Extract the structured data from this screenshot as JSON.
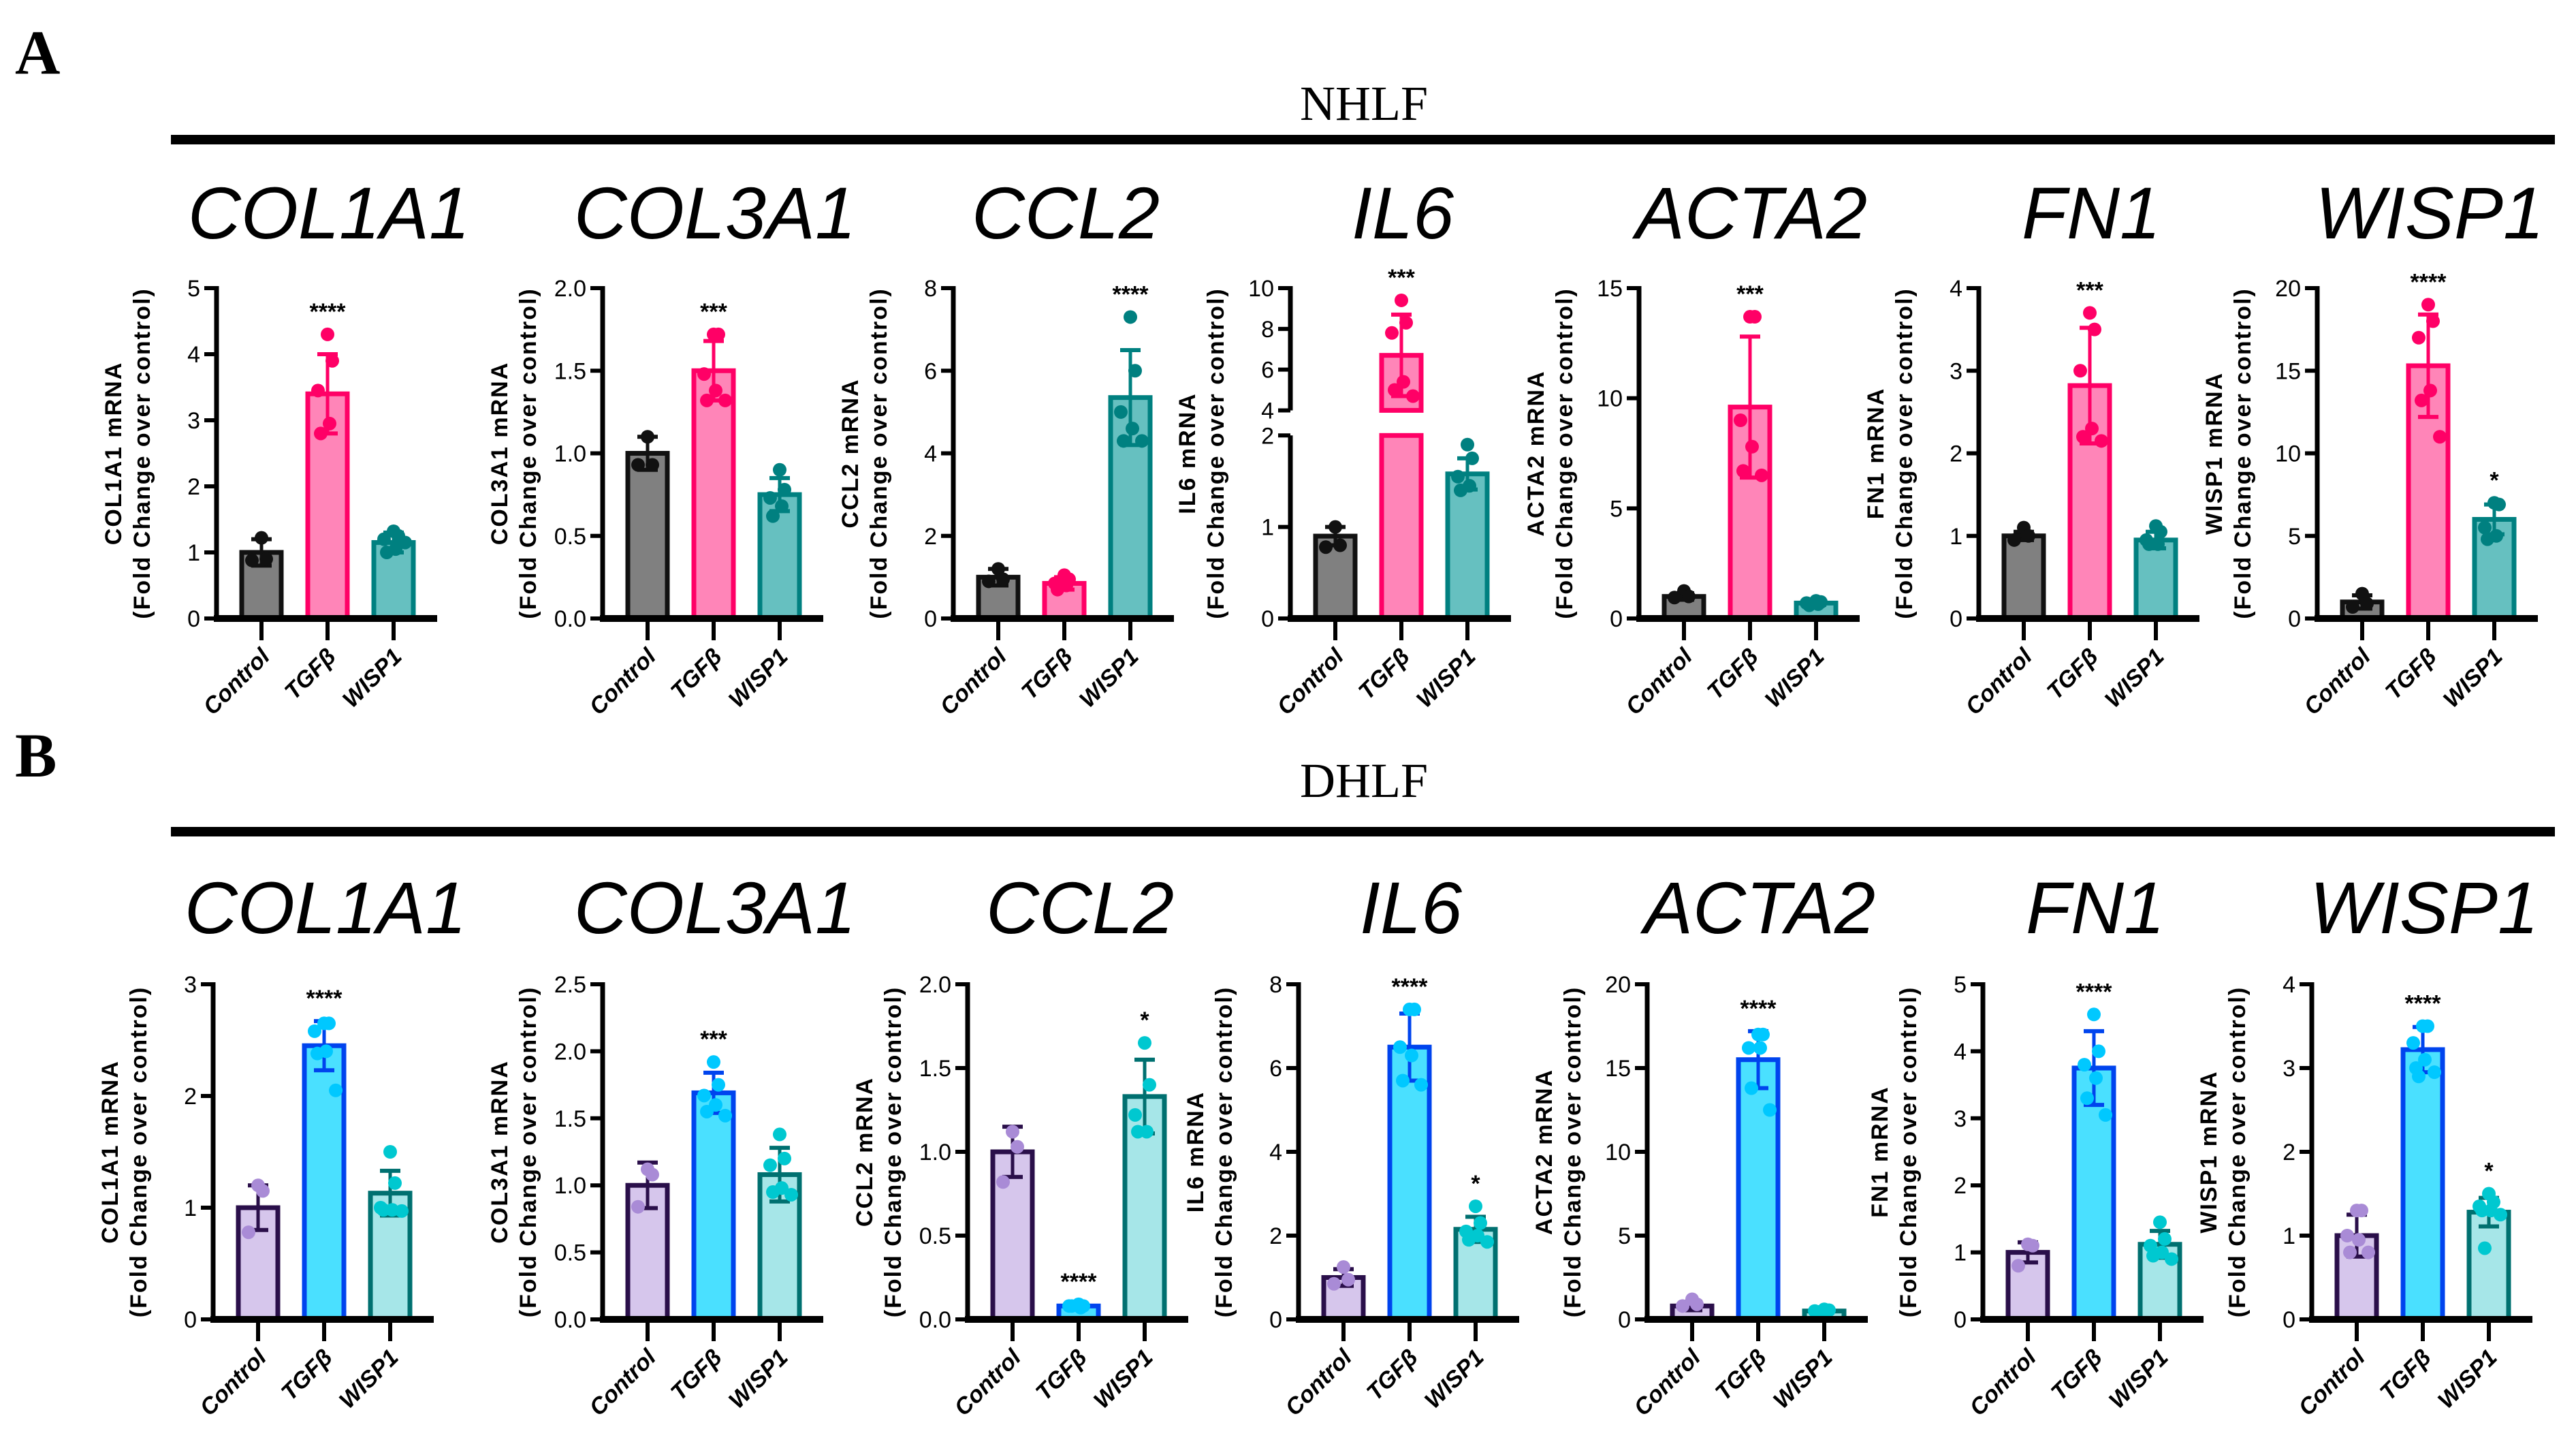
{
  "panels": [
    {
      "letter": "A",
      "cell_line": "NHLF"
    },
    {
      "letter": "B",
      "cell_line": "DHLF"
    }
  ],
  "colors": {
    "A": {
      "fill": [
        "#808080",
        "#ff85b8",
        "#66c0c0"
      ],
      "stroke": [
        "#111111",
        "#ff0066",
        "#008080"
      ],
      "dot": [
        "#111111",
        "#ff0066",
        "#008080"
      ]
    },
    "B": {
      "fill": [
        "#d6c6ec",
        "#4ae0ff",
        "#a6e6e8"
      ],
      "stroke": [
        "#2a0f4a",
        "#0044ee",
        "#007070"
      ],
      "dot": [
        "#a98bd6",
        "#00c8ff",
        "#00c8d0"
      ]
    }
  },
  "chart_data": [
    {
      "type": "bar",
      "panel": "A",
      "title": "COL1A1",
      "ylabel": "COL1A1 mRNA",
      "ylabel2": "(Fold Change over control)",
      "ylim": [
        0,
        5
      ],
      "yticks": [
        "0",
        "1",
        "2",
        "3",
        "4",
        "5"
      ],
      "categories": [
        "Control",
        "TGFβ",
        "WISP1"
      ],
      "series": [
        {
          "name": "Control",
          "mean": 1.0,
          "sd": 0.2,
          "points": [
            1.22,
            0.9,
            0.88
          ],
          "sig": ""
        },
        {
          "name": "TGFβ",
          "mean": 3.4,
          "sd": 0.6,
          "points": [
            4.3,
            3.9,
            3.45,
            2.95,
            2.8
          ],
          "sig": "****"
        },
        {
          "name": "WISP1",
          "mean": 1.15,
          "sd": 0.15,
          "points": [
            1.32,
            1.25,
            1.2,
            1.05,
            1.0,
            1.15
          ],
          "sig": ""
        }
      ]
    },
    {
      "type": "bar",
      "panel": "A",
      "title": "COL3A1",
      "ylabel": "COL3A1 mRNA",
      "ylabel2": "(Fold Change over control)",
      "ylim": [
        0,
        2
      ],
      "yticks": [
        "0.0",
        "0.5",
        "1.0",
        "1.5",
        "2.0"
      ],
      "categories": [
        "Control",
        "TGFβ",
        "WISP1"
      ],
      "series": [
        {
          "name": "Control",
          "mean": 1.0,
          "sd": 0.1,
          "points": [
            1.1,
            0.93,
            0.93
          ],
          "sig": ""
        },
        {
          "name": "TGFβ",
          "mean": 1.5,
          "sd": 0.18,
          "points": [
            1.72,
            1.72,
            1.48,
            1.38,
            1.32,
            1.32
          ],
          "sig": "***"
        },
        {
          "name": "WISP1",
          "mean": 0.75,
          "sd": 0.1,
          "points": [
            0.9,
            0.78,
            0.73,
            0.68,
            0.62
          ],
          "sig": ""
        }
      ]
    },
    {
      "type": "bar",
      "panel": "A",
      "title": "CCL2",
      "ylabel": "CCL2 mRNA",
      "ylabel2": "(Fold Change over control)",
      "ylim": [
        0,
        8
      ],
      "yticks": [
        "0",
        "2",
        "4",
        "6",
        "8"
      ],
      "categories": [
        "Control",
        "TGFβ",
        "WISP1"
      ],
      "series": [
        {
          "name": "Control",
          "mean": 1.0,
          "sd": 0.2,
          "points": [
            1.2,
            0.95,
            0.9
          ],
          "sig": ""
        },
        {
          "name": "TGFβ",
          "mean": 0.85,
          "sd": 0.15,
          "points": [
            1.05,
            0.95,
            0.85,
            0.8,
            0.7
          ],
          "sig": ""
        },
        {
          "name": "WISP1",
          "mean": 5.35,
          "sd": 1.15,
          "points": [
            7.3,
            6.0,
            5.0,
            4.6,
            4.3,
            4.3
          ],
          "sig": "****"
        }
      ]
    },
    {
      "type": "bar",
      "panel": "A",
      "title": "IL6",
      "ylabel": "IL6 mRNA",
      "ylabel2": "(Fold Change over control)",
      "ylim": [
        0,
        10
      ],
      "y_breaks": [
        [
          0,
          2
        ],
        [
          4,
          10
        ]
      ],
      "yticks": [
        "0",
        "1",
        "2",
        "4",
        "6",
        "8",
        "10"
      ],
      "categories": [
        "Control",
        "TGFβ",
        "WISP1"
      ],
      "series": [
        {
          "name": "Control",
          "mean": 0.9,
          "sd": 0.1,
          "points": [
            1.0,
            0.8,
            0.78
          ],
          "sig": ""
        },
        {
          "name": "TGFβ",
          "mean": 6.7,
          "sd": 2.0,
          "points": [
            9.4,
            8.3,
            7.8,
            5.4,
            5.0,
            4.7
          ],
          "sig": "***"
        },
        {
          "name": "WISP1",
          "mean": 1.58,
          "sd": 0.17,
          "points": [
            1.9,
            1.75,
            1.55,
            1.45,
            1.4
          ],
          "sig": ""
        }
      ]
    },
    {
      "type": "bar",
      "panel": "A",
      "title": "ACTA2",
      "ylabel": "ACTA2 mRNA",
      "ylabel2": "(Fold Change over control)",
      "ylim": [
        0,
        15
      ],
      "yticks": [
        "0",
        "5",
        "10",
        "15"
      ],
      "categories": [
        "Control",
        "TGFβ",
        "WISP1"
      ],
      "series": [
        {
          "name": "Control",
          "mean": 1.0,
          "sd": 0.15,
          "points": [
            1.25,
            1.0,
            0.95
          ],
          "sig": ""
        },
        {
          "name": "TGFβ",
          "mean": 9.6,
          "sd": 3.2,
          "points": [
            13.7,
            13.7,
            9.0,
            7.8,
            6.7,
            6.5
          ],
          "sig": "***"
        },
        {
          "name": "WISP1",
          "mean": 0.7,
          "sd": 0.08,
          "points": [
            0.8,
            0.75,
            0.7,
            0.65,
            0.6
          ],
          "sig": ""
        }
      ]
    },
    {
      "type": "bar",
      "panel": "A",
      "title": "FN1",
      "ylabel": "FN1 mRNA",
      "ylabel2": "(Fold Change over control)",
      "ylim": [
        0,
        4
      ],
      "yticks": [
        "0",
        "1",
        "2",
        "3",
        "4"
      ],
      "categories": [
        "Control",
        "TGFβ",
        "WISP1"
      ],
      "series": [
        {
          "name": "Control",
          "mean": 1.0,
          "sd": 0.05,
          "points": [
            1.1,
            1.0,
            0.95
          ],
          "sig": ""
        },
        {
          "name": "TGFβ",
          "mean": 2.82,
          "sd": 0.7,
          "points": [
            3.7,
            3.5,
            3.0,
            2.3,
            2.2,
            2.15
          ],
          "sig": "***"
        },
        {
          "name": "WISP1",
          "mean": 0.95,
          "sd": 0.1,
          "points": [
            1.12,
            1.05,
            0.95,
            0.9,
            0.9
          ],
          "sig": ""
        }
      ]
    },
    {
      "type": "bar",
      "panel": "A",
      "title": "WISP1",
      "ylabel": "WISP1 mRNA",
      "ylabel2": "(Fold Change over control)",
      "ylim": [
        0,
        20
      ],
      "yticks": [
        "0",
        "5",
        "10",
        "15",
        "20"
      ],
      "categories": [
        "Control",
        "TGFβ",
        "WISP1"
      ],
      "series": [
        {
          "name": "Control",
          "mean": 1.0,
          "sd": 0.4,
          "points": [
            1.5,
            0.9,
            0.7
          ],
          "sig": ""
        },
        {
          "name": "TGFβ",
          "mean": 15.3,
          "sd": 3.1,
          "points": [
            19,
            18,
            17,
            13.8,
            13.2,
            11
          ],
          "sig": "****"
        },
        {
          "name": "WISP1",
          "mean": 6.0,
          "sd": 0.9,
          "points": [
            7.0,
            6.9,
            5.5,
            5.0,
            4.8
          ],
          "sig": "*"
        }
      ]
    },
    {
      "type": "bar",
      "panel": "B",
      "title": "COL1A1",
      "ylabel": "COL1A1 mRNA",
      "ylabel2": "(Fold Change over control)",
      "ylim": [
        0,
        3
      ],
      "yticks": [
        "0",
        "1",
        "2",
        "3"
      ],
      "categories": [
        "Control",
        "TGFβ",
        "WISP1"
      ],
      "series": [
        {
          "name": "Control",
          "mean": 1.0,
          "sd": 0.2,
          "points": [
            1.2,
            1.15,
            0.78
          ],
          "sig": ""
        },
        {
          "name": "TGFβ",
          "mean": 2.45,
          "sd": 0.22,
          "points": [
            2.65,
            2.65,
            2.58,
            2.4,
            2.38,
            2.05
          ],
          "sig": "****"
        },
        {
          "name": "WISP1",
          "mean": 1.13,
          "sd": 0.2,
          "points": [
            1.5,
            1.22,
            1.0,
            0.98,
            0.98,
            0.97
          ],
          "sig": ""
        }
      ]
    },
    {
      "type": "bar",
      "panel": "B",
      "title": "COL3A1",
      "ylabel": "COL3A1 mRNA",
      "ylabel2": "(Fold Change over control)",
      "ylim": [
        0,
        2.5
      ],
      "yticks": [
        "0.0",
        "0.5",
        "1.0",
        "1.5",
        "2.0",
        "2.5"
      ],
      "categories": [
        "Control",
        "TGFβ",
        "WISP1"
      ],
      "series": [
        {
          "name": "Control",
          "mean": 1.0,
          "sd": 0.17,
          "points": [
            1.12,
            1.08,
            0.84
          ],
          "sig": ""
        },
        {
          "name": "TGFβ",
          "mean": 1.69,
          "sd": 0.15,
          "points": [
            1.92,
            1.75,
            1.67,
            1.6,
            1.55,
            1.52
          ],
          "sig": "***"
        },
        {
          "name": "WISP1",
          "mean": 1.08,
          "sd": 0.2,
          "points": [
            1.38,
            1.2,
            1.15,
            0.98,
            0.95,
            0.93
          ],
          "sig": ""
        }
      ]
    },
    {
      "type": "bar",
      "panel": "B",
      "title": "CCL2",
      "ylabel": "CCL2 mRNA",
      "ylabel2": "(Fold Change over control)",
      "ylim": [
        0,
        2
      ],
      "yticks": [
        "0.0",
        "0.5",
        "1.0",
        "1.5",
        "2.0"
      ],
      "categories": [
        "Control",
        "TGFβ",
        "WISP1"
      ],
      "series": [
        {
          "name": "Control",
          "mean": 1.0,
          "sd": 0.15,
          "points": [
            1.12,
            1.03,
            0.82
          ],
          "sig": ""
        },
        {
          "name": "TGFβ",
          "mean": 0.08,
          "sd": 0.01,
          "points": [
            0.09,
            0.08,
            0.08,
            0.07,
            0.08
          ],
          "sig": "****"
        },
        {
          "name": "WISP1",
          "mean": 1.33,
          "sd": 0.22,
          "points": [
            1.65,
            1.4,
            1.22,
            1.12,
            1.12
          ],
          "sig": "*"
        }
      ]
    },
    {
      "type": "bar",
      "panel": "B",
      "title": "IL6",
      "ylabel": "IL6 mRNA",
      "ylabel2": "(Fold Change over control)",
      "ylim": [
        0,
        8
      ],
      "yticks": [
        "0",
        "2",
        "4",
        "6",
        "8"
      ],
      "categories": [
        "Control",
        "TGFβ",
        "WISP1"
      ],
      "series": [
        {
          "name": "Control",
          "mean": 1.0,
          "sd": 0.2,
          "points": [
            1.25,
            0.95,
            0.85
          ],
          "sig": ""
        },
        {
          "name": "TGFβ",
          "mean": 6.5,
          "sd": 0.8,
          "points": [
            7.4,
            7.4,
            6.5,
            6.3,
            5.7,
            5.6
          ],
          "sig": "****"
        },
        {
          "name": "WISP1",
          "mean": 2.15,
          "sd": 0.3,
          "points": [
            2.7,
            2.3,
            2.1,
            2.0,
            1.9,
            1.85
          ],
          "sig": "*"
        }
      ]
    },
    {
      "type": "bar",
      "panel": "B",
      "title": "ACTA2",
      "ylabel": "ACTA2 mRNA",
      "ylabel2": "(Fold Change over control)",
      "ylim": [
        0,
        20
      ],
      "yticks": [
        "0",
        "5",
        "10",
        "15",
        "20"
      ],
      "categories": [
        "Control",
        "TGFβ",
        "WISP1"
      ],
      "series": [
        {
          "name": "Control",
          "mean": 0.8,
          "sd": 0.25,
          "points": [
            1.2,
            0.9,
            0.8
          ],
          "sig": ""
        },
        {
          "name": "TGFβ",
          "mean": 15.5,
          "sd": 1.7,
          "points": [
            17,
            17,
            16.2,
            16.2,
            13.8,
            12.5
          ],
          "sig": "****"
        },
        {
          "name": "WISP1",
          "mean": 0.5,
          "sd": 0.08,
          "points": [
            0.6,
            0.55,
            0.5,
            0.5,
            0.45
          ],
          "sig": ""
        }
      ]
    },
    {
      "type": "bar",
      "panel": "B",
      "title": "FN1",
      "ylabel": "FN1 mRNA",
      "ylabel2": "(Fold Change over control)",
      "ylim": [
        0,
        5
      ],
      "yticks": [
        "0",
        "1",
        "2",
        "3",
        "4",
        "5"
      ],
      "categories": [
        "Control",
        "TGFβ",
        "WISP1"
      ],
      "series": [
        {
          "name": "Control",
          "mean": 1.0,
          "sd": 0.15,
          "points": [
            1.12,
            1.1,
            0.8
          ],
          "sig": ""
        },
        {
          "name": "TGFβ",
          "mean": 3.75,
          "sd": 0.55,
          "points": [
            4.55,
            4.0,
            3.8,
            3.6,
            3.3,
            3.05
          ],
          "sig": "****"
        },
        {
          "name": "WISP1",
          "mean": 1.12,
          "sd": 0.2,
          "points": [
            1.45,
            1.2,
            1.1,
            1.0,
            0.95,
            0.9
          ],
          "sig": ""
        }
      ]
    },
    {
      "type": "bar",
      "panel": "B",
      "title": "WISP1",
      "ylabel": "WISP1 mRNA",
      "ylabel2": "(Fold Change over control)",
      "ylim": [
        0,
        4
      ],
      "yticks": [
        "0",
        "1",
        "2",
        "3",
        "4"
      ],
      "categories": [
        "Control",
        "TGFβ",
        "WISP1"
      ],
      "series": [
        {
          "name": "Control",
          "mean": 1.0,
          "sd": 0.25,
          "points": [
            1.3,
            1.3,
            1.0,
            0.95,
            0.8,
            0.8
          ],
          "sig": ""
        },
        {
          "name": "TGFβ",
          "mean": 3.22,
          "sd": 0.27,
          "points": [
            3.5,
            3.5,
            3.3,
            3.1,
            3.0,
            2.95,
            2.9
          ],
          "sig": "****"
        },
        {
          "name": "WISP1",
          "mean": 1.28,
          "sd": 0.17,
          "points": [
            1.5,
            1.4,
            1.35,
            1.3,
            1.3,
            1.25,
            0.85
          ],
          "sig": "*"
        }
      ]
    }
  ]
}
